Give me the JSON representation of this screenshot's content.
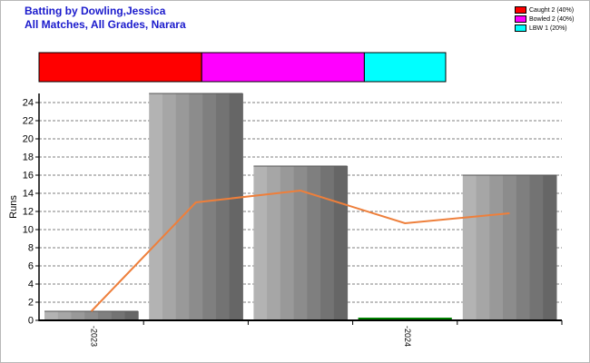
{
  "header": {
    "title": "Batting by Dowling,Jessica",
    "subtitle": "All Matches, All Grades, Narara"
  },
  "legend": [
    {
      "label": "Caught 2 (40%)",
      "color": "#ff0000"
    },
    {
      "label": "Bowled 2 (40%)",
      "color": "#ff00ff"
    },
    {
      "label": "LBW 1 (20%)",
      "color": "#00ffff"
    }
  ],
  "dismissals": [
    {
      "label": "Caught",
      "count": 2,
      "color": "#ff0000"
    },
    {
      "label": "Bowled",
      "count": 2,
      "color": "#ff00ff"
    },
    {
      "label": "LBW",
      "count": 1,
      "color": "#00ffff"
    }
  ],
  "chart_data": {
    "type": "bar",
    "ylabel": "Runs",
    "ylim": [
      0,
      25
    ],
    "yticks": [
      0,
      2,
      4,
      6,
      8,
      10,
      12,
      14,
      16,
      18,
      20,
      22,
      24
    ],
    "grid": "horizontal dashed",
    "x_tick_labels": [
      {
        "label": "2023",
        "after_bar": 0
      },
      {
        "label": "2024",
        "after_bar": 3
      }
    ],
    "innings": [
      1,
      25,
      17,
      0,
      16
    ],
    "average_line": [
      1,
      13,
      14.3,
      10.7,
      11.8
    ],
    "bar_colors": [
      "#b3b3b3",
      "#a6a6a6",
      "#999999",
      "#8c8c8c",
      "#7f7f7f",
      "#737373",
      "#666666"
    ],
    "zero_marker_color": "#008000",
    "line_color": "#ee7f3b"
  }
}
